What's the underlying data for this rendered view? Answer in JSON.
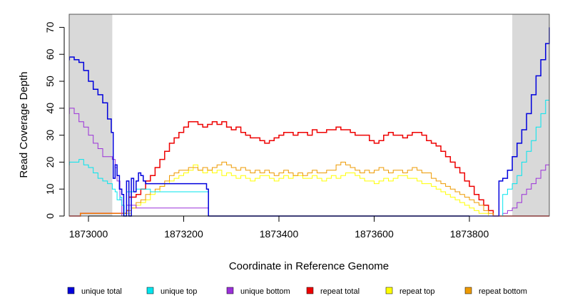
{
  "chart_data": {
    "type": "line",
    "title": "",
    "xlabel": "Coordinate in Reference Genome",
    "ylabel": "Read Coverage Depth",
    "xlim": [
      1872950,
      1873990
    ],
    "ylim": [
      0,
      75
    ],
    "x_ticks": [
      1873000,
      1873200,
      1873400,
      1873600,
      1873800
    ],
    "x_tick_labels": [
      "1873000",
      "1873200",
      "1873400",
      "1873600",
      "1873800"
    ],
    "y_ticks": [
      0,
      10,
      20,
      30,
      40,
      50,
      60,
      70
    ],
    "y_tick_labels": [
      "0",
      "10",
      "20",
      "30",
      "40",
      "50",
      "60",
      "70"
    ],
    "grid": false,
    "legend_position": "bottom",
    "shaded_regions": [
      {
        "x": [
          1872950,
          1873050
        ],
        "color": "#d9d9d9"
      },
      {
        "x": [
          1873890,
          1873990
        ],
        "color": "#d9d9d9"
      }
    ],
    "series": [
      {
        "name": "unique total",
        "color": "#0000dd",
        "x": [
          1872950,
          1872960,
          1872970,
          1872980,
          1872990,
          1873000,
          1873010,
          1873020,
          1873030,
          1873040,
          1873048,
          1873052,
          1873056,
          1873060,
          1873065,
          1873070,
          1873074,
          1873080,
          1873085,
          1873090,
          1873095,
          1873100,
          1873105,
          1873110,
          1873115,
          1873120,
          1873130,
          1873150,
          1873200,
          1873240,
          1873248,
          1873252,
          1873260,
          1873850,
          1873858,
          1873862,
          1873870,
          1873880,
          1873890,
          1873900,
          1873910,
          1873920,
          1873930,
          1873940,
          1873950,
          1873960,
          1873970,
          1873980,
          1873990
        ],
        "y": [
          58,
          59,
          58,
          57,
          54,
          50,
          47,
          45,
          42,
          36,
          31,
          14,
          19,
          15,
          10,
          8,
          0,
          13,
          0,
          14,
          9,
          13,
          16,
          15,
          13,
          12,
          12,
          12,
          12,
          12,
          10,
          0,
          0,
          0,
          0,
          13,
          14,
          17,
          22,
          27,
          32,
          38,
          45,
          52,
          58,
          64,
          68,
          70,
          70
        ]
      },
      {
        "name": "unique top",
        "color": "#00e5ee",
        "x": [
          1872950,
          1872960,
          1872970,
          1872980,
          1872990,
          1873000,
          1873010,
          1873020,
          1873030,
          1873040,
          1873050,
          1873056,
          1873060,
          1873066,
          1873070,
          1873075,
          1873080,
          1873100,
          1873130,
          1873150,
          1873200,
          1873246,
          1873252,
          1873260,
          1873850,
          1873860,
          1873870,
          1873880,
          1873890,
          1873900,
          1873910,
          1873920,
          1873930,
          1873940,
          1873950,
          1873960,
          1873970,
          1873980,
          1873990
        ],
        "y": [
          19,
          20,
          20,
          21,
          19,
          18,
          16,
          14,
          13,
          12,
          10,
          9,
          6,
          7,
          4,
          0,
          9,
          10,
          9,
          9,
          9,
          9,
          0,
          0,
          0,
          0,
          8,
          10,
          12,
          15,
          20,
          24,
          28,
          33,
          38,
          43,
          46,
          48,
          49
        ]
      },
      {
        "name": "unique bottom",
        "color": "#9b30d9",
        "x": [
          1872950,
          1872960,
          1872970,
          1872980,
          1872990,
          1873000,
          1873010,
          1873020,
          1873030,
          1873040,
          1873050,
          1873056,
          1873060,
          1873066,
          1873070,
          1873080,
          1873100,
          1873130,
          1873150,
          1873200,
          1873246,
          1873252,
          1873260,
          1873850,
          1873860,
          1873870,
          1873880,
          1873890,
          1873900,
          1873910,
          1873920,
          1873930,
          1873940,
          1873950,
          1873960,
          1873970,
          1873980,
          1873990
        ],
        "y": [
          38,
          40,
          38,
          35,
          33,
          30,
          27,
          25,
          22,
          22,
          21,
          18,
          13,
          6,
          0,
          4,
          3,
          3,
          3,
          3,
          3,
          0,
          0,
          0,
          0,
          1,
          2,
          3,
          5,
          8,
          10,
          12,
          14,
          17,
          19,
          20,
          21,
          21
        ]
      },
      {
        "name": "repeat total",
        "color": "#ee0000",
        "x": [
          1872950,
          1872983,
          1873050,
          1873080,
          1873085,
          1873090,
          1873100,
          1873110,
          1873120,
          1873130,
          1873140,
          1873150,
          1873160,
          1873170,
          1873180,
          1873190,
          1873200,
          1873210,
          1873220,
          1873230,
          1873240,
          1873250,
          1873260,
          1873270,
          1873280,
          1873290,
          1873300,
          1873310,
          1873320,
          1873330,
          1873340,
          1873350,
          1873360,
          1873370,
          1873380,
          1873390,
          1873400,
          1873410,
          1873420,
          1873430,
          1873440,
          1873450,
          1873460,
          1873470,
          1873480,
          1873490,
          1873500,
          1873510,
          1873520,
          1873530,
          1873540,
          1873550,
          1873560,
          1873570,
          1873580,
          1873590,
          1873600,
          1873610,
          1873620,
          1873630,
          1873640,
          1873650,
          1873660,
          1873670,
          1873680,
          1873690,
          1873700,
          1873710,
          1873720,
          1873730,
          1873740,
          1873750,
          1873760,
          1873770,
          1873780,
          1873790,
          1873800,
          1873810,
          1873820,
          1873830,
          1873840,
          1873850,
          1873860,
          1873990
        ],
        "y": [
          0,
          1,
          1,
          2,
          7,
          7,
          8,
          10,
          13,
          15,
          18,
          21,
          24,
          27,
          29,
          31,
          33,
          35,
          35,
          34,
          33,
          34,
          35,
          34,
          35,
          33,
          32,
          33,
          31,
          30,
          29,
          29,
          28,
          27,
          28,
          29,
          30,
          31,
          31,
          30,
          31,
          31,
          30,
          32,
          31,
          31,
          32,
          32,
          33,
          32,
          32,
          31,
          30,
          30,
          30,
          28,
          27,
          28,
          30,
          31,
          30,
          30,
          29,
          30,
          31,
          31,
          30,
          28,
          27,
          26,
          24,
          22,
          20,
          18,
          16,
          13,
          11,
          8,
          6,
          4,
          2,
          0,
          0,
          0
        ]
      },
      {
        "name": "repeat top",
        "color": "#ffff00",
        "x": [
          1872950,
          1873050,
          1873080,
          1873090,
          1873100,
          1873110,
          1873120,
          1873130,
          1873140,
          1873150,
          1873160,
          1873170,
          1873180,
          1873190,
          1873200,
          1873210,
          1873220,
          1873230,
          1873240,
          1873250,
          1873260,
          1873270,
          1873280,
          1873290,
          1873300,
          1873310,
          1873320,
          1873330,
          1873340,
          1873350,
          1873360,
          1873370,
          1873380,
          1873390,
          1873400,
          1873410,
          1873420,
          1873430,
          1873440,
          1873450,
          1873460,
          1873470,
          1873480,
          1873490,
          1873500,
          1873510,
          1873520,
          1873530,
          1873540,
          1873550,
          1873560,
          1873570,
          1873580,
          1873590,
          1873600,
          1873610,
          1873620,
          1873630,
          1873640,
          1873650,
          1873660,
          1873670,
          1873680,
          1873690,
          1873700,
          1873710,
          1873720,
          1873730,
          1873740,
          1873750,
          1873760,
          1873770,
          1873780,
          1873790,
          1873800,
          1873810,
          1873820,
          1873830,
          1873840,
          1873850,
          1873990
        ],
        "y": [
          0,
          0,
          1,
          3,
          4,
          5,
          6,
          8,
          9,
          11,
          12,
          13,
          14,
          15,
          16,
          17,
          19,
          17,
          16,
          17,
          16,
          17,
          15,
          16,
          15,
          14,
          15,
          14,
          13,
          14,
          15,
          15,
          14,
          13,
          14,
          15,
          14,
          15,
          15,
          14,
          14,
          15,
          14,
          13,
          14,
          15,
          14,
          15,
          16,
          16,
          15,
          14,
          13,
          13,
          12,
          13,
          14,
          13,
          14,
          15,
          15,
          14,
          14,
          13,
          12,
          12,
          11,
          10,
          9,
          8,
          7,
          6,
          5,
          4,
          3,
          2,
          1,
          1,
          0,
          0,
          0
        ]
      },
      {
        "name": "repeat bottom",
        "color": "#ee9a00",
        "x": [
          1872950,
          1872983,
          1873050,
          1873080,
          1873090,
          1873100,
          1873110,
          1873120,
          1873130,
          1873140,
          1873150,
          1873160,
          1873170,
          1873180,
          1873190,
          1873200,
          1873210,
          1873220,
          1873230,
          1873240,
          1873250,
          1873260,
          1873270,
          1873280,
          1873290,
          1873300,
          1873310,
          1873320,
          1873330,
          1873340,
          1873350,
          1873360,
          1873370,
          1873380,
          1873390,
          1873400,
          1873410,
          1873420,
          1873430,
          1873440,
          1873450,
          1873460,
          1873470,
          1873480,
          1873490,
          1873500,
          1873510,
          1873520,
          1873530,
          1873540,
          1873550,
          1873560,
          1873570,
          1873580,
          1873590,
          1873600,
          1873610,
          1873620,
          1873630,
          1873640,
          1873650,
          1873660,
          1873670,
          1873680,
          1873690,
          1873700,
          1873710,
          1873720,
          1873730,
          1873740,
          1873750,
          1873760,
          1873770,
          1873780,
          1873790,
          1873800,
          1873810,
          1873820,
          1873830,
          1873840,
          1873850,
          1873990
        ],
        "y": [
          0,
          1,
          1,
          2,
          3,
          5,
          6,
          8,
          9,
          10,
          11,
          13,
          15,
          16,
          17,
          17,
          18,
          18,
          17,
          18,
          17,
          18,
          19,
          20,
          19,
          18,
          17,
          18,
          17,
          16,
          17,
          16,
          17,
          16,
          15,
          16,
          17,
          16,
          15,
          16,
          15,
          16,
          17,
          16,
          16,
          17,
          17,
          19,
          20,
          19,
          18,
          17,
          16,
          17,
          16,
          17,
          18,
          17,
          16,
          17,
          17,
          16,
          17,
          18,
          17,
          16,
          16,
          14,
          13,
          12,
          11,
          10,
          9,
          8,
          7,
          6,
          5,
          4,
          2,
          1,
          0,
          0
        ]
      }
    ]
  }
}
